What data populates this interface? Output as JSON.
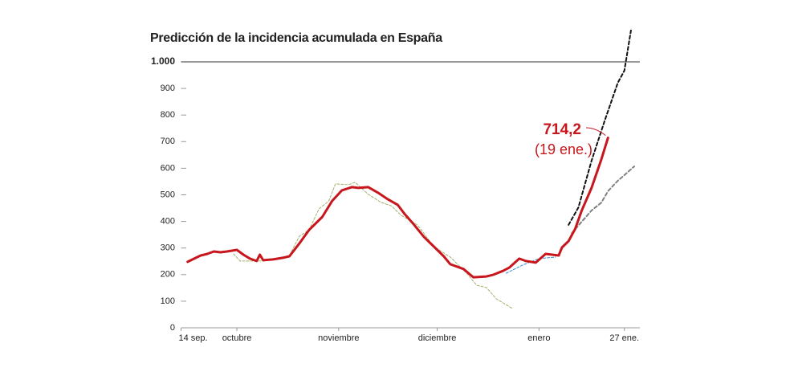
{
  "chart_data": {
    "type": "line",
    "title": "Predicción de la incidencia acumulada en España",
    "xlim": [
      0,
      138
    ],
    "ylim": [
      0,
      1000
    ],
    "xticks": [
      {
        "value": 0,
        "label": "14 sep."
      },
      {
        "value": 17,
        "label": "octubre"
      },
      {
        "value": 48,
        "label": "noviembre"
      },
      {
        "value": 78,
        "label": "diciembre"
      },
      {
        "value": 109,
        "label": "enero"
      },
      {
        "value": 135,
        "label": "27 ene."
      }
    ],
    "yticks": [
      0,
      100,
      200,
      300,
      400,
      500,
      600,
      700,
      800,
      900,
      {
        "value": 1000,
        "label": "1.000"
      }
    ],
    "annotations": [
      {
        "value": 714.2,
        "label": "714,2"
      },
      {
        "label": "(19 ene.)"
      }
    ],
    "series": [
      {
        "color": "#a3b06a",
        "dashed": true,
        "width": 1,
        "x": [
          16,
          18,
          25,
          33,
          36,
          39,
          42,
          45,
          47,
          51,
          53,
          57,
          61,
          64,
          67,
          72,
          77,
          82,
          87,
          90,
          93,
          96,
          101
        ],
        "values": [
          278,
          251,
          251,
          272,
          344,
          368,
          447,
          477,
          541,
          538,
          547,
          502,
          471,
          459,
          423,
          387,
          305,
          266,
          205,
          160,
          151,
          109,
          72
        ]
      },
      {
        "color": "#3a8fd0",
        "dashed": true,
        "width": 1,
        "x": [
          99,
          104,
          109,
          114
        ],
        "values": [
          205,
          236,
          260,
          266
        ]
      },
      {
        "color": "#111111",
        "dashed": true,
        "width": 2,
        "x": [
          118,
          121,
          125,
          129,
          133,
          135,
          137
        ],
        "values": [
          387,
          453,
          628,
          779,
          921,
          967,
          1118
        ]
      },
      {
        "color": "#808080",
        "dashed": true,
        "width": 2,
        "x": [
          119,
          122,
          125,
          128,
          130,
          133,
          135,
          138
        ],
        "values": [
          356,
          399,
          441,
          471,
          514,
          553,
          574,
          607
        ]
      },
      {
        "color": "#c8161d",
        "dashed": false,
        "width": 3,
        "x": [
          2,
          4,
          6,
          8,
          10,
          12,
          14,
          17,
          19,
          21,
          23,
          24,
          25,
          28,
          31,
          33,
          36,
          39,
          43,
          46,
          49,
          52,
          54,
          57,
          60,
          63,
          66,
          68,
          71,
          74,
          77,
          80,
          82,
          86,
          89,
          93,
          95,
          98,
          100,
          103,
          105,
          108,
          111,
          115,
          116,
          118,
          120,
          122,
          125,
          128,
          130
        ],
        "values": [
          248,
          260,
          272,
          278,
          287,
          284,
          287,
          293,
          275,
          260,
          251,
          275,
          254,
          257,
          263,
          269,
          317,
          368,
          417,
          477,
          517,
          529,
          526,
          529,
          508,
          483,
          462,
          429,
          387,
          341,
          305,
          269,
          239,
          221,
          190,
          193,
          199,
          214,
          227,
          260,
          251,
          245,
          278,
          272,
          302,
          326,
          372,
          441,
          526,
          634,
          714.2
        ]
      }
    ]
  }
}
